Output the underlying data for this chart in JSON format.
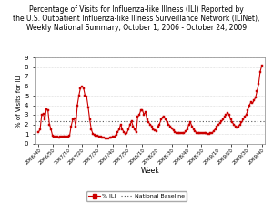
{
  "title_line1": "Percentage of Visits for Influenza-like Illness (ILI) Reported by",
  "title_line2": "the U.S. Outpatient Influenza-like Illness Surveillance Network (ILINet),",
  "title_line3": "Weekly National Summary, October 1, 2006 - October 24, 2009",
  "xlabel": "Week",
  "ylabel": "% of Visits for ILI",
  "national_baseline": 2.35,
  "ylim": [
    0,
    9
  ],
  "yticks": [
    0,
    1,
    2,
    3,
    4,
    5,
    6,
    7,
    8,
    9
  ],
  "line_color": "#cc0000",
  "marker": "s",
  "marker_size": 1.5,
  "baseline_color": "#555555",
  "background_color": "#ffffff",
  "legend_ili": "% ILI",
  "legend_baseline": "National Baseline",
  "week_labels": [
    "2006/40",
    "2006/50",
    "2007/10",
    "2007/20",
    "2007/30",
    "2007/40",
    "2007/50",
    "2008/10",
    "2008/20",
    "2008/30",
    "2008/40",
    "2008/50",
    "2009/10",
    "2009/20",
    "2009/30",
    "2009/40"
  ],
  "ili_values": [
    1.2,
    1.5,
    3.0,
    3.1,
    2.5,
    3.6,
    3.5,
    2.0,
    1.5,
    0.8,
    0.75,
    0.7,
    0.7,
    0.65,
    0.7,
    0.7,
    0.7,
    0.7,
    0.7,
    0.75,
    0.8,
    1.8,
    2.5,
    2.6,
    1.8,
    4.0,
    5.0,
    5.8,
    6.0,
    5.8,
    5.0,
    4.9,
    3.8,
    2.5,
    1.5,
    1.0,
    0.9,
    0.85,
    0.8,
    0.75,
    0.7,
    0.65,
    0.6,
    0.55,
    0.55,
    0.55,
    0.6,
    0.65,
    0.7,
    0.75,
    0.9,
    1.2,
    1.5,
    2.0,
    1.5,
    1.2,
    1.0,
    1.1,
    1.5,
    2.0,
    2.3,
    1.8,
    1.5,
    1.2,
    2.8,
    3.0,
    3.5,
    3.5,
    3.0,
    3.3,
    2.5,
    2.2,
    2.0,
    1.8,
    1.5,
    1.4,
    1.3,
    1.8,
    2.0,
    2.5,
    2.7,
    2.8,
    2.5,
    2.2,
    2.0,
    1.8,
    1.6,
    1.4,
    1.2,
    1.1,
    1.05,
    1.05,
    1.05,
    1.05,
    1.1,
    1.3,
    1.5,
    2.0,
    2.2,
    1.8,
    1.5,
    1.3,
    1.1,
    1.05,
    1.05,
    1.05,
    1.05,
    1.05,
    1.05,
    1.0,
    1.0,
    1.05,
    1.1,
    1.3,
    1.5,
    1.8,
    2.0,
    2.1,
    2.3,
    2.5,
    2.8,
    3.0,
    3.2,
    3.0,
    2.5,
    2.2,
    2.0,
    1.8,
    1.7,
    1.8,
    2.0,
    2.2,
    2.5,
    2.8,
    3.0,
    3.5,
    4.0,
    4.3,
    4.2,
    4.5,
    4.8,
    5.5,
    6.2,
    7.5,
    8.1
  ]
}
